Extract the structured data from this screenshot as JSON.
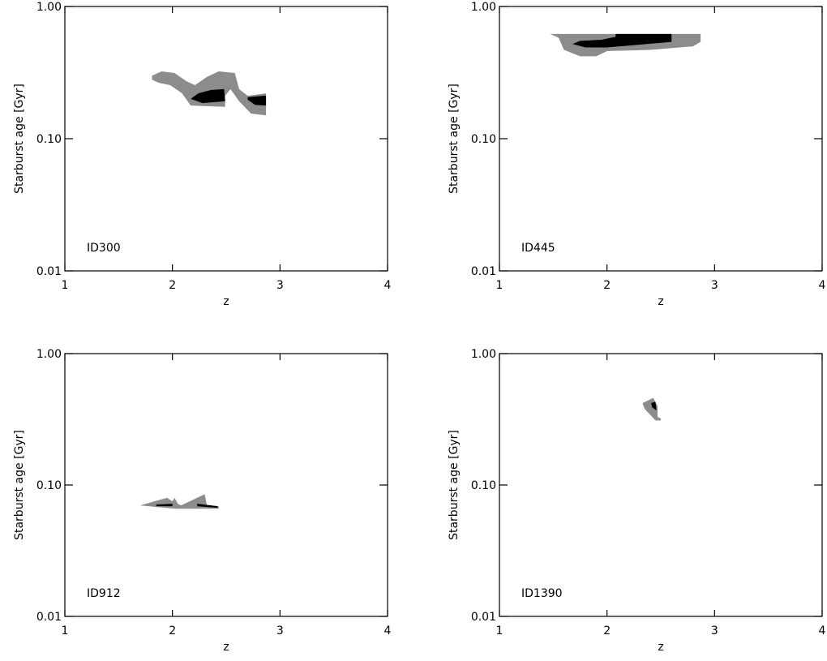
{
  "chart_data": [
    {
      "type": "contour",
      "label": "ID300",
      "xlabel": "z",
      "ylabel": "Starburst age [Gyr]",
      "yscale": "log",
      "xlim": [
        1,
        4
      ],
      "ylim": [
        0.01,
        1.0
      ],
      "xticks": [
        1,
        2,
        3,
        4
      ],
      "yticks": [
        0.01,
        {
          "value": 0.1,
          "label": "0.10"
        },
        {
          "value": 1.0,
          "label": "1.00"
        }
      ],
      "regions": [
        {
          "color": "#8c8c8c",
          "x": [
            1.81,
            1.9,
            2.02,
            2.13,
            2.21,
            2.32,
            2.43,
            2.58,
            2.62,
            2.7,
            2.87,
            2.87,
            2.73,
            2.62,
            2.54,
            2.49,
            2.49,
            2.17,
            2.09,
            1.98,
            1.87,
            1.81
          ],
          "y": [
            0.3,
            0.323,
            0.314,
            0.272,
            0.254,
            0.293,
            0.323,
            0.314,
            0.237,
            0.211,
            0.22,
            0.15,
            0.155,
            0.192,
            0.237,
            0.211,
            0.174,
            0.178,
            0.22,
            0.254,
            0.265,
            0.28
          ]
        },
        {
          "color": "#000000",
          "x": [
            2.17,
            2.24,
            2.36,
            2.48,
            2.49,
            2.28
          ],
          "y": [
            0.2,
            0.22,
            0.234,
            0.237,
            0.192,
            0.186
          ]
        },
        {
          "color": "#000000",
          "x": [
            2.7,
            2.87,
            2.87,
            2.77,
            2.7
          ],
          "y": [
            0.206,
            0.212,
            0.178,
            0.18,
            0.197
          ]
        }
      ]
    },
    {
      "type": "contour",
      "label": "ID445",
      "xlabel": "z",
      "ylabel": "Starburst age [Gyr]",
      "yscale": "log",
      "xlim": [
        1,
        4
      ],
      "ylim": [
        0.01,
        1.0
      ],
      "xticks": [
        1,
        2,
        3,
        4
      ],
      "yticks": [
        0.01,
        {
          "value": 0.1,
          "label": "0.10"
        },
        {
          "value": 1.0,
          "label": "1.00"
        }
      ],
      "regions": [
        {
          "color": "#8c8c8c",
          "x": [
            1.47,
            2.87,
            2.87,
            2.8,
            2.4,
            2.0,
            1.9,
            1.75,
            1.6,
            1.55
          ],
          "y": [
            0.62,
            0.62,
            0.54,
            0.5,
            0.47,
            0.46,
            0.42,
            0.42,
            0.47,
            0.58
          ]
        },
        {
          "color": "#000000",
          "x": [
            2.08,
            2.6,
            2.6,
            2.0,
            1.8,
            1.68,
            1.75,
            1.95,
            2.08
          ],
          "y": [
            0.62,
            0.62,
            0.54,
            0.49,
            0.49,
            0.52,
            0.55,
            0.56,
            0.59
          ]
        }
      ]
    },
    {
      "type": "contour",
      "label": "ID912",
      "xlabel": "z",
      "ylabel": "Starburst age [Gyr]",
      "yscale": "log",
      "xlim": [
        1,
        4
      ],
      "ylim": [
        0.01,
        1.0
      ],
      "xticks": [
        1,
        2,
        3,
        4
      ],
      "yticks": [
        0.01,
        {
          "value": 0.1,
          "label": "0.10"
        },
        {
          "value": 1.0,
          "label": "1.00"
        }
      ],
      "regions": [
        {
          "color": "#8c8c8c",
          "x": [
            1.7,
            1.95,
            2.0,
            2.02,
            2.05,
            2.08,
            2.3,
            2.32,
            2.43,
            2.43,
            2.1,
            2.03,
            1.85
          ],
          "y": [
            0.07,
            0.08,
            0.075,
            0.08,
            0.072,
            0.07,
            0.085,
            0.07,
            0.069,
            0.066,
            0.066,
            0.066,
            0.068
          ]
        },
        {
          "color": "#000000",
          "x": [
            1.85,
            2.0,
            2.0,
            1.85
          ],
          "y": [
            0.071,
            0.072,
            0.069,
            0.069
          ]
        },
        {
          "color": "#000000",
          "x": [
            2.23,
            2.42,
            2.42,
            2.23
          ],
          "y": [
            0.072,
            0.069,
            0.067,
            0.069
          ]
        }
      ]
    },
    {
      "type": "contour",
      "label": "ID1390",
      "xlabel": "z",
      "ylabel": "Starburst age [Gyr]",
      "yscale": "log",
      "xlim": [
        1,
        4
      ],
      "ylim": [
        0.01,
        1.0
      ],
      "xticks": [
        1,
        2,
        3,
        4
      ],
      "yticks": [
        0.01,
        {
          "value": 0.1,
          "label": "0.10"
        },
        {
          "value": 1.0,
          "label": "1.00"
        }
      ],
      "regions": [
        {
          "color": "#8c8c8c",
          "x": [
            2.33,
            2.43,
            2.47,
            2.47,
            2.5,
            2.5,
            2.45,
            2.35
          ],
          "y": [
            0.42,
            0.46,
            0.4,
            0.33,
            0.32,
            0.31,
            0.31,
            0.38
          ]
        },
        {
          "color": "#000000",
          "x": [
            2.41,
            2.45,
            2.46,
            2.42
          ],
          "y": [
            0.42,
            0.43,
            0.37,
            0.39
          ]
        }
      ]
    }
  ]
}
